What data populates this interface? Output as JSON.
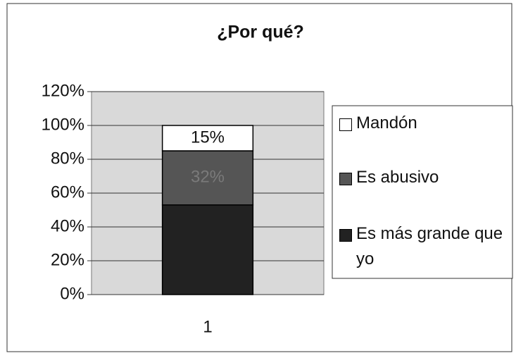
{
  "chart_data": {
    "type": "bar",
    "stacked": true,
    "title": "¿Por qué?",
    "categories": [
      "1"
    ],
    "series": [
      {
        "name": "Es más grande que yo",
        "color": "#222222",
        "values": [
          53
        ]
      },
      {
        "name": "Es abusivo",
        "color": "#555555",
        "values": [
          32
        ],
        "value_labels": [
          "32%"
        ]
      },
      {
        "name": "Mandón",
        "color": "#ffffff",
        "values": [
          15
        ],
        "value_labels": [
          "15%"
        ]
      }
    ],
    "ylim": [
      0,
      120
    ],
    "yticks": [
      {
        "value": 0,
        "label": "0%"
      },
      {
        "value": 20,
        "label": "20%"
      },
      {
        "value": 40,
        "label": "40%"
      },
      {
        "value": 60,
        "label": "60%"
      },
      {
        "value": 80,
        "label": "80%"
      },
      {
        "value": 100,
        "label": "100%"
      },
      {
        "value": 120,
        "label": "120%"
      }
    ],
    "grid": true,
    "legend": "right"
  }
}
